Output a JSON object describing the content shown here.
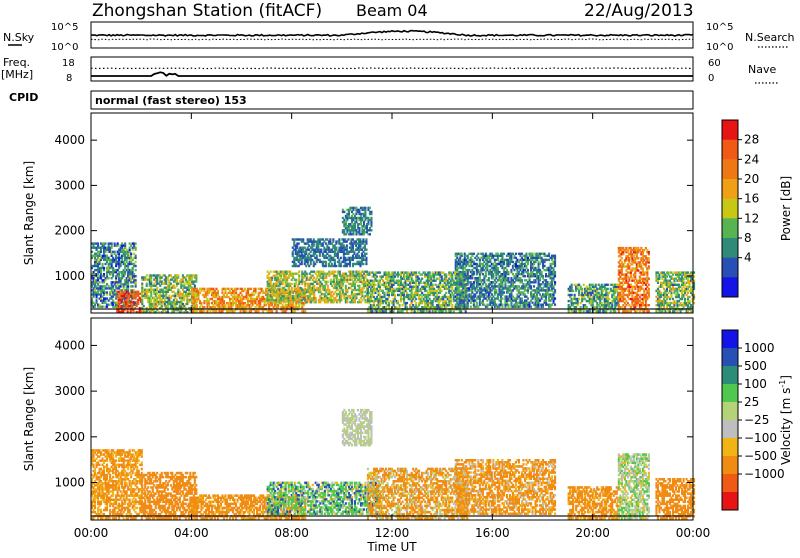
{
  "header": {
    "station_title": "Zhongshan Station (fitACF)",
    "beam": "Beam 04",
    "date": "22/Aug/2013"
  },
  "noise_panel": {
    "left_label": "N.Sky",
    "right_label": "N.Search",
    "left_ticks": [
      "10^5",
      "10^0"
    ],
    "right_ticks": [
      "10^5",
      "10^0"
    ]
  },
  "freq_panel": {
    "left_label_line1": "Freq.",
    "left_label_line2": "[MHz]",
    "left_ticks": [
      "18",
      "8"
    ],
    "right_label": "Nave",
    "right_ticks": [
      "60",
      "0"
    ]
  },
  "cpid": {
    "label": "CPID",
    "text": "normal (fast stereo) 153"
  },
  "colors": {
    "power_scale": [
      "#1414e6",
      "#2850b4",
      "#2f8a78",
      "#58b450",
      "#c8c814",
      "#f0a014",
      "#f07814",
      "#f05a14",
      "#e61414"
    ],
    "velocity_scale": [
      "#e61414",
      "#f05a14",
      "#f08c14",
      "#f0b414",
      "#bebebe",
      "#b4d278",
      "#50c850",
      "#2d8c78",
      "#2850b4",
      "#1414e6"
    ]
  },
  "chart_data": [
    {
      "type": "heatmap",
      "name": "power",
      "ylabel": "Slant Range [km]",
      "yticks": [
        1000,
        2000,
        3000,
        4000
      ],
      "ylim": [
        180,
        4600
      ],
      "x_ticks": [
        "00:00",
        "04:00",
        "08:00",
        "12:00",
        "16:00",
        "20:00",
        "00:00"
      ],
      "x_hours": [
        0,
        4,
        8,
        12,
        16,
        20,
        24
      ],
      "colorbar": {
        "label": "Power [dB]",
        "ticks": [
          "28",
          "24",
          "20",
          "16",
          "12",
          "8",
          "4"
        ],
        "range": [
          0,
          30
        ]
      },
      "regions": [
        {
          "t0": 0.0,
          "t1": 1.8,
          "r0": 300,
          "r1": 1700,
          "base": 8,
          "amp": 6
        },
        {
          "t0": 1.0,
          "t1": 2.0,
          "r0": 180,
          "r1": 650,
          "base": 25,
          "amp": 4
        },
        {
          "t0": 2.0,
          "t1": 4.2,
          "r0": 180,
          "r1": 1000,
          "base": 12,
          "amp": 6
        },
        {
          "t0": 4.0,
          "t1": 8.5,
          "r0": 200,
          "r1": 700,
          "base": 20,
          "amp": 6
        },
        {
          "t0": 7.0,
          "t1": 11.0,
          "r0": 400,
          "r1": 1100,
          "base": 14,
          "amp": 6
        },
        {
          "t0": 8.0,
          "t1": 11.0,
          "r0": 1200,
          "r1": 1800,
          "base": 7,
          "amp": 3
        },
        {
          "t0": 10.0,
          "t1": 11.2,
          "r0": 1900,
          "r1": 2500,
          "base": 8,
          "amp": 3
        },
        {
          "t0": 11.0,
          "t1": 15.0,
          "r0": 200,
          "r1": 1100,
          "base": 11,
          "amp": 6
        },
        {
          "t0": 14.5,
          "t1": 18.5,
          "r0": 300,
          "r1": 1500,
          "base": 8,
          "amp": 5
        },
        {
          "t0": 19.0,
          "t1": 21.0,
          "r0": 200,
          "r1": 800,
          "base": 10,
          "amp": 5
        },
        {
          "t0": 21.0,
          "t1": 22.2,
          "r0": 200,
          "r1": 1600,
          "base": 22,
          "amp": 6
        },
        {
          "t0": 22.5,
          "t1": 24.0,
          "r0": 200,
          "r1": 1100,
          "base": 12,
          "amp": 6
        }
      ]
    },
    {
      "type": "heatmap",
      "name": "velocity",
      "ylabel": "Slant Range [km]",
      "yticks": [
        1000,
        2000,
        3000,
        4000
      ],
      "ylim": [
        180,
        4600
      ],
      "x_ticks": [
        "00:00",
        "04:00",
        "08:00",
        "12:00",
        "16:00",
        "20:00",
        "00:00"
      ],
      "x_hours": [
        0,
        4,
        8,
        12,
        16,
        20,
        24
      ],
      "xlabel": "Time UT",
      "colorbar": {
        "label": "Velocity [m s",
        "label_sup": "-1",
        "label_end": "]",
        "ticks": [
          "1000",
          "500",
          "100",
          "25",
          "−25",
          "−100",
          "−500",
          "−1000"
        ],
        "range": [
          -1250,
          1250
        ]
      },
      "regions": [
        {
          "t0": 0.0,
          "t1": 2.0,
          "r0": 200,
          "r1": 1700,
          "base": -150,
          "amp": 120
        },
        {
          "t0": 2.0,
          "t1": 4.2,
          "r0": 200,
          "r1": 1200,
          "base": -250,
          "amp": 150
        },
        {
          "t0": 4.0,
          "t1": 8.5,
          "r0": 200,
          "r1": 700,
          "base": -200,
          "amp": 150
        },
        {
          "t0": 7.0,
          "t1": 11.5,
          "r0": 300,
          "r1": 1000,
          "base": 300,
          "amp": 400
        },
        {
          "t0": 10.0,
          "t1": 11.2,
          "r0": 1800,
          "r1": 2600,
          "base": 20,
          "amp": 40
        },
        {
          "t0": 11.0,
          "t1": 15.0,
          "r0": 200,
          "r1": 1300,
          "base": -150,
          "amp": 250
        },
        {
          "t0": 14.5,
          "t1": 18.5,
          "r0": 300,
          "r1": 1500,
          "base": -180,
          "amp": 200
        },
        {
          "t0": 19.0,
          "t1": 21.0,
          "r0": 200,
          "r1": 900,
          "base": -200,
          "amp": 150
        },
        {
          "t0": 21.0,
          "t1": 22.2,
          "r0": 200,
          "r1": 1600,
          "base": 60,
          "amp": 120
        },
        {
          "t0": 22.5,
          "t1": 24.0,
          "r0": 200,
          "r1": 1100,
          "base": -250,
          "amp": 150
        }
      ]
    }
  ]
}
